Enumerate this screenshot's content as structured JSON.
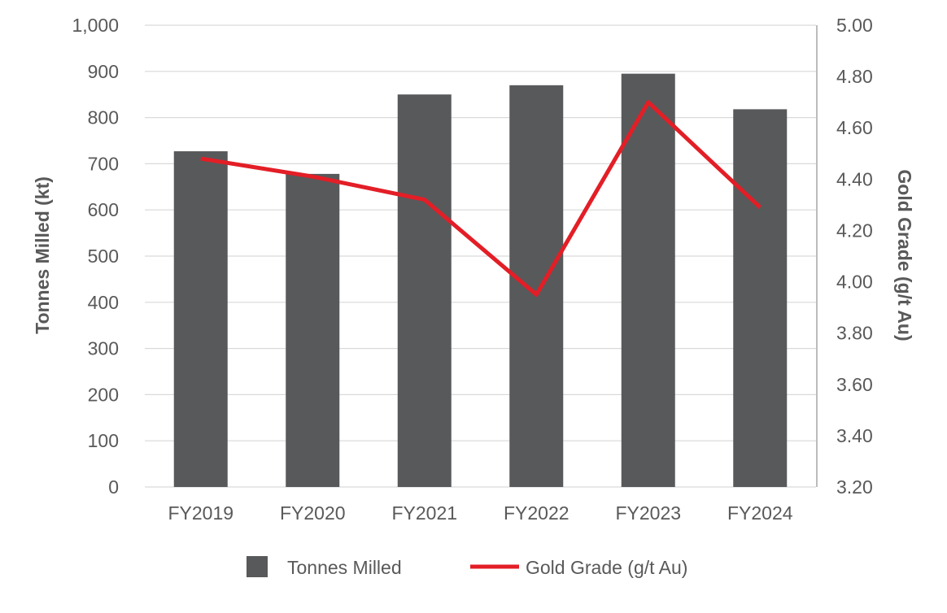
{
  "chart_data": {
    "type": "bar",
    "categories": [
      "FY2019",
      "FY2020",
      "FY2021",
      "FY2022",
      "FY2023",
      "FY2024"
    ],
    "series": [
      {
        "name": "Tonnes Milled",
        "type": "bar",
        "axis": "left",
        "color": "#58595b",
        "values": [
          727,
          678,
          850,
          870,
          895,
          818
        ]
      },
      {
        "name": "Gold Grade (g/t Au)",
        "type": "line",
        "axis": "right",
        "color": "#e31e26",
        "values": [
          4.48,
          4.41,
          4.32,
          3.95,
          4.7,
          4.29
        ]
      }
    ],
    "title": "",
    "xlabel": "",
    "ylabel": "Tonnes Milled (kt)",
    "y2label": "Gold Grade (g/t Au)",
    "ylim": [
      0,
      1000
    ],
    "y2lim": [
      3.2,
      5.0
    ],
    "yticks": [
      "0",
      "100",
      "200",
      "300",
      "400",
      "500",
      "600",
      "700",
      "800",
      "900",
      "1,000"
    ],
    "y2ticks": [
      "3.20",
      "3.40",
      "3.60",
      "3.80",
      "4.00",
      "4.20",
      "4.40",
      "4.60",
      "4.80",
      "5.00"
    ],
    "grid": true,
    "legend": "bottom-center"
  },
  "colors": {
    "grid": "#d9d9d9",
    "axis_text": "#595959",
    "right_axis_line": "#a6a6a6"
  }
}
